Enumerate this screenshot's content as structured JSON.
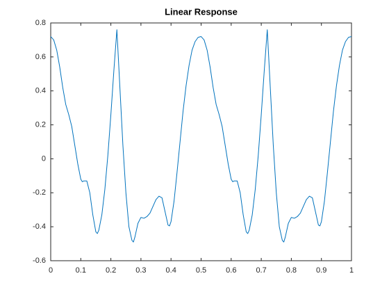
{
  "chart_data": {
    "type": "line",
    "title": "Linear Response",
    "x": [
      0,
      0.01,
      0.02,
      0.03,
      0.04,
      0.05,
      0.06,
      0.07,
      0.08,
      0.09,
      0.1,
      0.105,
      0.11,
      0.12,
      0.13,
      0.14,
      0.15,
      0.155,
      0.16,
      0.17,
      0.18,
      0.19,
      0.2,
      0.21,
      0.22,
      0.23,
      0.24,
      0.25,
      0.26,
      0.27,
      0.275,
      0.28,
      0.29,
      0.3,
      0.31,
      0.32,
      0.33,
      0.34,
      0.35,
      0.36,
      0.37,
      0.38,
      0.39,
      0.395,
      0.4,
      0.41,
      0.42,
      0.43,
      0.44,
      0.45,
      0.46,
      0.47,
      0.48,
      0.49,
      0.5,
      0.51,
      0.52,
      0.53,
      0.54,
      0.55,
      0.56,
      0.57,
      0.58,
      0.59,
      0.6,
      0.605,
      0.61,
      0.62,
      0.63,
      0.64,
      0.65,
      0.655,
      0.66,
      0.67,
      0.68,
      0.69,
      0.7,
      0.71,
      0.72,
      0.73,
      0.74,
      0.75,
      0.76,
      0.77,
      0.775,
      0.78,
      0.79,
      0.8,
      0.81,
      0.82,
      0.83,
      0.84,
      0.85,
      0.86,
      0.87,
      0.88,
      0.89,
      0.895,
      0.9,
      0.91,
      0.92,
      0.93,
      0.94,
      0.95,
      0.96,
      0.97,
      0.98,
      0.99,
      1
    ],
    "series": [
      {
        "color": "#0072bd",
        "values": [
          0.72,
          0.7,
          0.64,
          0.54,
          0.42,
          0.32,
          0.26,
          0.19,
          0.08,
          -0.03,
          -0.12,
          -0.135,
          -0.13,
          -0.13,
          -0.2,
          -0.33,
          -0.43,
          -0.44,
          -0.42,
          -0.33,
          -0.18,
          0.02,
          0.26,
          0.52,
          0.76,
          0.42,
          0.08,
          -0.2,
          -0.4,
          -0.48,
          -0.49,
          -0.46,
          -0.38,
          -0.345,
          -0.35,
          -0.34,
          -0.32,
          -0.28,
          -0.24,
          -0.22,
          -0.23,
          -0.31,
          -0.39,
          -0.395,
          -0.37,
          -0.25,
          -0.08,
          0.1,
          0.28,
          0.43,
          0.55,
          0.64,
          0.69,
          0.715,
          0.72,
          0.7,
          0.64,
          0.54,
          0.42,
          0.32,
          0.26,
          0.19,
          0.08,
          -0.03,
          -0.12,
          -0.135,
          -0.13,
          -0.13,
          -0.2,
          -0.33,
          -0.43,
          -0.44,
          -0.42,
          -0.33,
          -0.18,
          0.02,
          0.26,
          0.52,
          0.76,
          0.42,
          0.08,
          -0.2,
          -0.4,
          -0.48,
          -0.49,
          -0.46,
          -0.38,
          -0.345,
          -0.35,
          -0.34,
          -0.32,
          -0.28,
          -0.24,
          -0.22,
          -0.23,
          -0.31,
          -0.39,
          -0.395,
          -0.37,
          -0.25,
          -0.08,
          0.1,
          0.28,
          0.43,
          0.55,
          0.64,
          0.69,
          0.715,
          0.72
        ]
      }
    ],
    "xlim": [
      0,
      1
    ],
    "xticks": [
      0,
      0.1,
      0.2,
      0.3,
      0.4,
      0.5,
      0.6,
      0.7,
      0.8,
      0.9,
      1
    ],
    "ylim": [
      -0.6,
      0.8
    ],
    "yticks": [
      -0.6,
      -0.4,
      -0.2,
      0,
      0.2,
      0.4,
      0.6,
      0.8
    ],
    "grid": false
  }
}
